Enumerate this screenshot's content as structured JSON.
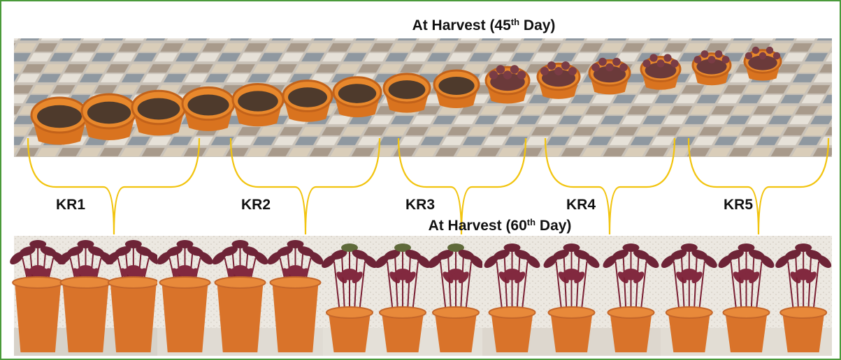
{
  "figure": {
    "top_heading": {
      "prefix": "At Harvest (45",
      "sup": "th",
      "suffix": " Day)"
    },
    "bottom_heading": {
      "prefix": "At Harvest (60",
      "sup": "th",
      "suffix": " Day)"
    },
    "groups": [
      "KR1",
      "KR2",
      "KR3",
      "KR4",
      "KR5"
    ]
  }
}
